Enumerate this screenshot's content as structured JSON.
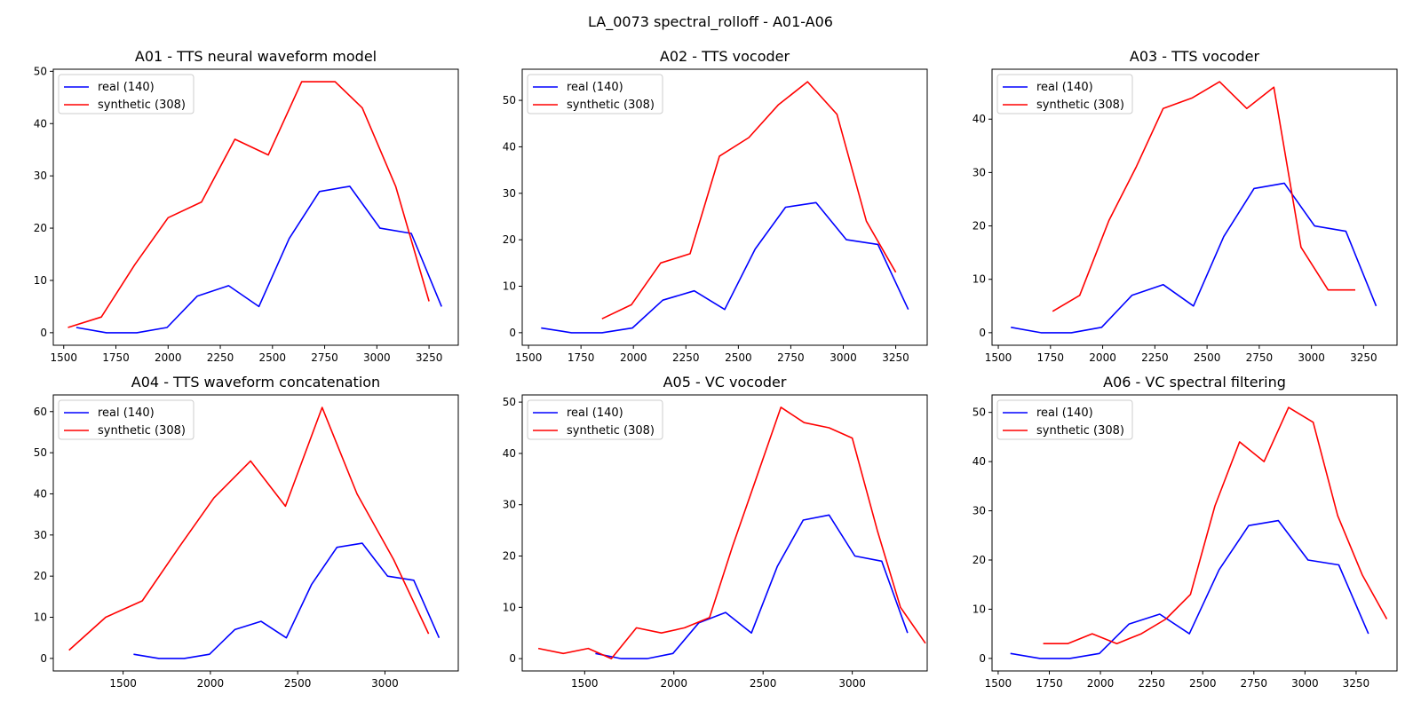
{
  "figure": {
    "title": "LA_0073 spectral_rolloff - A01-A06"
  },
  "colors": {
    "real": "#0000ff",
    "synthetic": "#ff0000"
  },
  "chart_data": [
    {
      "type": "line",
      "title": "A01 - TTS neural waveform model",
      "xlabel": "",
      "ylabel": "",
      "xlim": [
        1450,
        3390
      ],
      "ylim": [
        -2.4,
        50.4
      ],
      "xticks": [
        1500,
        1750,
        2000,
        2250,
        2500,
        2750,
        3000,
        3250
      ],
      "yticks": [
        0,
        10,
        20,
        30,
        40,
        50
      ],
      "legend": "upper left",
      "series": [
        {
          "name": "real (140)",
          "color": "#0000ff",
          "x": [
            1560,
            1705,
            1850,
            1995,
            2140,
            2290,
            2435,
            2580,
            2725,
            2870,
            3015,
            3165,
            3310
          ],
          "y": [
            1,
            0,
            0,
            1,
            7,
            9,
            5,
            18,
            27,
            28,
            20,
            19,
            5
          ]
        },
        {
          "name": "synthetic (308)",
          "color": "#ff0000",
          "x": [
            1520,
            1680,
            1840,
            2000,
            2160,
            2320,
            2480,
            2640,
            2800,
            2930,
            3090,
            3250
          ],
          "y": [
            1,
            3,
            13,
            22,
            25,
            37,
            34,
            48,
            48,
            43,
            28,
            6
          ]
        }
      ]
    },
    {
      "type": "line",
      "title": "A02 - TTS vocoder",
      "xlabel": "",
      "ylabel": "",
      "xlim": [
        1470,
        3400
      ],
      "ylim": [
        -2.7,
        56.7
      ],
      "xticks": [
        1500,
        1750,
        2000,
        2250,
        2500,
        2750,
        3000,
        3250
      ],
      "yticks": [
        0,
        10,
        20,
        30,
        40,
        50
      ],
      "legend": "upper left",
      "series": [
        {
          "name": "real (140)",
          "color": "#0000ff",
          "x": [
            1560,
            1705,
            1850,
            1995,
            2140,
            2290,
            2435,
            2580,
            2725,
            2870,
            3015,
            3165,
            3310
          ],
          "y": [
            1,
            0,
            0,
            1,
            7,
            9,
            5,
            18,
            27,
            28,
            20,
            19,
            5
          ]
        },
        {
          "name": "synthetic (308)",
          "color": "#ff0000",
          "x": [
            1850,
            1990,
            2130,
            2270,
            2410,
            2550,
            2690,
            2830,
            2970,
            3110,
            3250
          ],
          "y": [
            3,
            6,
            15,
            17,
            38,
            42,
            49,
            54,
            47,
            24,
            13
          ]
        }
      ]
    },
    {
      "type": "line",
      "title": "A03 - TTS vocoder",
      "xlabel": "",
      "ylabel": "",
      "xlim": [
        1470,
        3410
      ],
      "ylim": [
        -2.35,
        49.35
      ],
      "xticks": [
        1500,
        1750,
        2000,
        2250,
        2500,
        2750,
        3000,
        3250
      ],
      "yticks": [
        0,
        10,
        20,
        30,
        40
      ],
      "legend": "upper left",
      "series": [
        {
          "name": "real (140)",
          "color": "#0000ff",
          "x": [
            1560,
            1705,
            1850,
            1995,
            2140,
            2290,
            2435,
            2580,
            2725,
            2870,
            3015,
            3165,
            3310
          ],
          "y": [
            1,
            0,
            0,
            1,
            7,
            9,
            5,
            18,
            27,
            28,
            20,
            19,
            5
          ]
        },
        {
          "name": "synthetic (308)",
          "color": "#ff0000",
          "x": [
            1760,
            1890,
            2030,
            2160,
            2290,
            2430,
            2560,
            2690,
            2820,
            2950,
            3080,
            3210
          ],
          "y": [
            4,
            7,
            21,
            31,
            42,
            44,
            47,
            42,
            46,
            16,
            8,
            8
          ]
        }
      ]
    },
    {
      "type": "line",
      "title": "A04 - TTS waveform concatenation",
      "xlabel": "",
      "ylabel": "",
      "xlim": [
        1100,
        3420
      ],
      "ylim": [
        -3.05,
        64.05
      ],
      "xticks": [
        1500,
        2000,
        2500,
        3000
      ],
      "yticks": [
        0,
        10,
        20,
        30,
        40,
        50,
        60
      ],
      "legend": "upper left",
      "series": [
        {
          "name": "real (140)",
          "color": "#0000ff",
          "x": [
            1560,
            1705,
            1850,
            1995,
            2140,
            2290,
            2435,
            2580,
            2725,
            2870,
            3015,
            3165,
            3310
          ],
          "y": [
            1,
            0,
            0,
            1,
            7,
            9,
            5,
            18,
            27,
            28,
            20,
            19,
            5
          ]
        },
        {
          "name": "synthetic (308)",
          "color": "#ff0000",
          "x": [
            1190,
            1400,
            1610,
            1820,
            2020,
            2230,
            2430,
            2640,
            2840,
            3050,
            3250
          ],
          "y": [
            2,
            10,
            14,
            27,
            39,
            48,
            37,
            61,
            40,
            24,
            6
          ]
        }
      ]
    },
    {
      "type": "line",
      "title": "A05 - VC vocoder",
      "xlabel": "",
      "ylabel": "",
      "xlim": [
        1150,
        3420
      ],
      "ylim": [
        -2.4,
        51.4
      ],
      "xticks": [
        1500,
        2000,
        2500,
        3000
      ],
      "yticks": [
        0,
        10,
        20,
        30,
        40,
        50
      ],
      "legend": "upper left",
      "series": [
        {
          "name": "real (140)",
          "color": "#0000ff",
          "x": [
            1560,
            1705,
            1850,
            1995,
            2140,
            2290,
            2435,
            2580,
            2725,
            2870,
            3015,
            3165,
            3310
          ],
          "y": [
            1,
            0,
            0,
            1,
            7,
            9,
            5,
            18,
            27,
            28,
            20,
            19,
            5
          ]
        },
        {
          "name": "synthetic (308)",
          "color": "#ff0000",
          "x": [
            1240,
            1380,
            1520,
            1650,
            1790,
            1930,
            2060,
            2200,
            2330,
            2460,
            2600,
            2730,
            2870,
            3000,
            3140,
            3270,
            3410
          ],
          "y": [
            2,
            1,
            2,
            0,
            6,
            5,
            6,
            8,
            22,
            35,
            49,
            46,
            45,
            43,
            25,
            10,
            3
          ]
        }
      ]
    },
    {
      "type": "line",
      "title": "A06 - VC spectral filtering",
      "xlabel": "",
      "ylabel": "",
      "xlim": [
        1470,
        3450
      ],
      "ylim": [
        -2.55,
        53.55
      ],
      "xticks": [
        1500,
        1750,
        2000,
        2250,
        2500,
        2750,
        3000,
        3250
      ],
      "yticks": [
        0,
        10,
        20,
        30,
        40,
        50
      ],
      "legend": "upper left",
      "series": [
        {
          "name": "real (140)",
          "color": "#0000ff",
          "x": [
            1560,
            1705,
            1850,
            1995,
            2140,
            2290,
            2435,
            2580,
            2725,
            2870,
            3015,
            3165,
            3310
          ],
          "y": [
            1,
            0,
            0,
            1,
            7,
            9,
            5,
            18,
            27,
            28,
            20,
            19,
            5
          ]
        },
        {
          "name": "synthetic (308)",
          "color": "#ff0000",
          "x": [
            1720,
            1840,
            1960,
            2080,
            2200,
            2320,
            2440,
            2560,
            2680,
            2800,
            2920,
            3040,
            3160,
            3280,
            3400
          ],
          "y": [
            3,
            3,
            5,
            3,
            5,
            8,
            13,
            31,
            44,
            40,
            51,
            48,
            29,
            17,
            8
          ]
        }
      ]
    }
  ]
}
